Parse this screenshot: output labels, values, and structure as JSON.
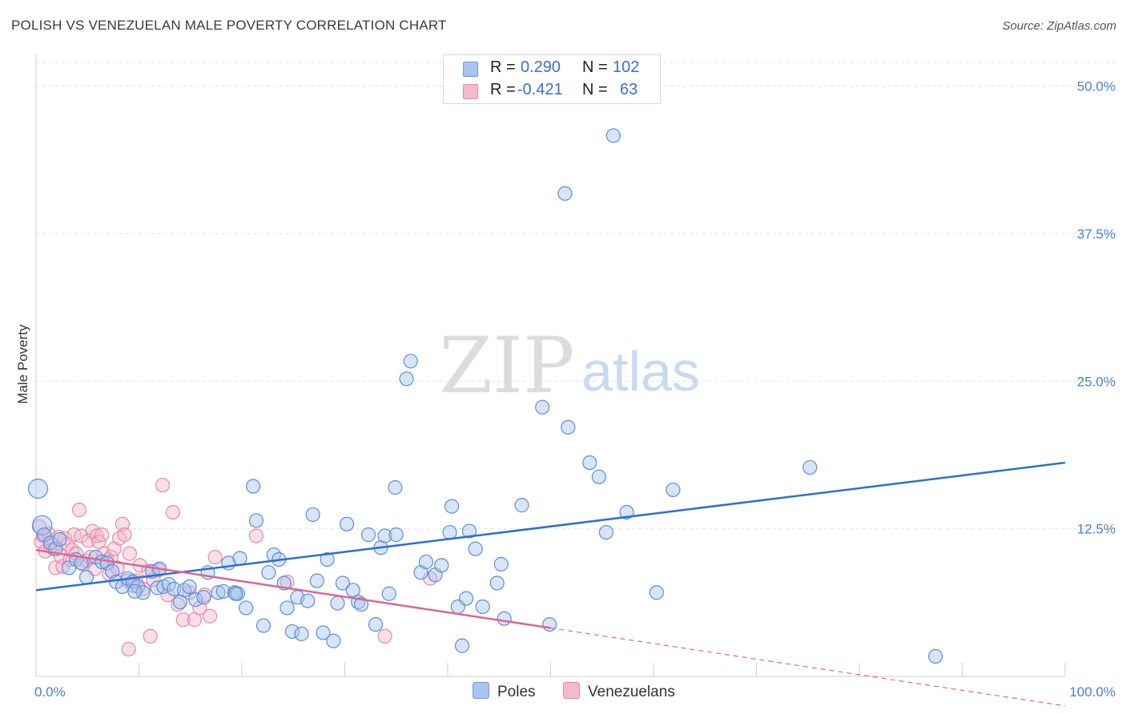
{
  "header": {
    "title": "POLISH VS VENEZUELAN MALE POVERTY CORRELATION CHART",
    "source": "Source: ZipAtlas.com"
  },
  "legend_top": {
    "rows": [
      {
        "r_label": "R =",
        "r_value": "0.290",
        "n_label": "N =",
        "n_value": "102",
        "color": "#a9c4f0"
      },
      {
        "r_label": "R =",
        "r_value": "-0.421",
        "n_label": "N =",
        "n_value": "63",
        "color": "#f5b8cc"
      }
    ]
  },
  "legend_bottom": {
    "items": [
      {
        "label": "Poles",
        "color": "#a9c4f0"
      },
      {
        "label": "Venezuelans",
        "color": "#f5b8cc"
      }
    ]
  },
  "watermark": {
    "zip": "ZIP",
    "atlas": "atlas"
  },
  "chart_data": {
    "type": "scatter",
    "title": "POLISH VS VENEZUELAN MALE POVERTY CORRELATION CHART",
    "xlabel": "",
    "ylabel": "Male Poverty",
    "xlim": [
      0,
      100
    ],
    "ylim": [
      0,
      52
    ],
    "x_tick_labels": [
      "0.0%",
      "100.0%"
    ],
    "y_ticks": [
      12.5,
      25.0,
      37.5,
      50.0
    ],
    "y_tick_labels": [
      "12.5%",
      "25.0%",
      "37.5%",
      "50.0%"
    ],
    "grid": true,
    "legend_placement": "top-center",
    "colors": {
      "poles_fill": "#a9c4f0",
      "poles_edge": "#5b8fd8",
      "poles_line": "#2e6fd0",
      "venezuelans_fill": "#f5b8cc",
      "venezuelans_edge": "#e48aa8",
      "venezuelans_line": "#e0658f"
    },
    "series": [
      {
        "name": "Poles",
        "r": 0.29,
        "n": 102,
        "trend": {
          "x": [
            0,
            100
          ],
          "y": [
            7.3,
            18.1
          ]
        },
        "points": [
          [
            0.2,
            15.9
          ],
          [
            0.6,
            12.8
          ],
          [
            0.8,
            12.0
          ],
          [
            1.4,
            11.3
          ],
          [
            1.9,
            10.8
          ],
          [
            2.3,
            11.6
          ],
          [
            3.2,
            9.2
          ],
          [
            3.9,
            9.9
          ],
          [
            4.4,
            9.6
          ],
          [
            4.9,
            8.4
          ],
          [
            5.8,
            10.1
          ],
          [
            6.4,
            9.7
          ],
          [
            6.9,
            9.6
          ],
          [
            7.4,
            8.9
          ],
          [
            7.8,
            8.0
          ],
          [
            8.4,
            7.6
          ],
          [
            8.9,
            8.3
          ],
          [
            9.4,
            8.0
          ],
          [
            9.9,
            7.6
          ],
          [
            10.4,
            7.1
          ],
          [
            11.3,
            8.9
          ],
          [
            11.8,
            7.5
          ],
          [
            12.4,
            7.6
          ],
          [
            12.9,
            7.8
          ],
          [
            13.4,
            7.4
          ],
          [
            14.4,
            7.3
          ],
          [
            14.9,
            7.6
          ],
          [
            15.5,
            6.5
          ],
          [
            16.3,
            6.7
          ],
          [
            16.7,
            8.8
          ],
          [
            17.7,
            7.1
          ],
          [
            18.2,
            7.2
          ],
          [
            18.7,
            9.6
          ],
          [
            19.3,
            7.1
          ],
          [
            19.6,
            7.0
          ],
          [
            19.8,
            10.0
          ],
          [
            20.4,
            5.8
          ],
          [
            21.1,
            16.1
          ],
          [
            21.4,
            13.2
          ],
          [
            22.1,
            4.3
          ],
          [
            22.6,
            8.8
          ],
          [
            23.1,
            10.3
          ],
          [
            23.6,
            9.9
          ],
          [
            24.1,
            7.9
          ],
          [
            24.4,
            5.8
          ],
          [
            24.9,
            3.8
          ],
          [
            25.4,
            6.7
          ],
          [
            25.8,
            3.6
          ],
          [
            26.4,
            6.4
          ],
          [
            26.9,
            13.7
          ],
          [
            27.3,
            8.1
          ],
          [
            27.9,
            3.7
          ],
          [
            28.3,
            9.9
          ],
          [
            28.9,
            3.0
          ],
          [
            29.3,
            6.2
          ],
          [
            29.8,
            7.9
          ],
          [
            30.2,
            12.9
          ],
          [
            30.8,
            7.3
          ],
          [
            31.3,
            6.3
          ],
          [
            31.6,
            6.1
          ],
          [
            32.3,
            12.0
          ],
          [
            33.0,
            4.4
          ],
          [
            33.5,
            10.9
          ],
          [
            33.9,
            11.9
          ],
          [
            34.3,
            7.0
          ],
          [
            35.0,
            12.0
          ],
          [
            34.9,
            16.0
          ],
          [
            36.0,
            25.2
          ],
          [
            36.4,
            26.7
          ],
          [
            37.4,
            8.8
          ],
          [
            37.9,
            9.7
          ],
          [
            38.8,
            8.6
          ],
          [
            39.4,
            9.4
          ],
          [
            40.2,
            12.2
          ],
          [
            40.4,
            14.4
          ],
          [
            41.0,
            5.9
          ],
          [
            41.4,
            2.6
          ],
          [
            41.8,
            6.6
          ],
          [
            42.1,
            12.3
          ],
          [
            42.7,
            10.8
          ],
          [
            43.4,
            5.9
          ],
          [
            44.8,
            7.9
          ],
          [
            45.5,
            4.9
          ],
          [
            45.2,
            9.5
          ],
          [
            47.2,
            14.5
          ],
          [
            49.2,
            22.8
          ],
          [
            49.9,
            4.4
          ],
          [
            51.4,
            40.9
          ],
          [
            51.7,
            21.1
          ],
          [
            53.8,
            18.1
          ],
          [
            54.7,
            16.9
          ],
          [
            55.4,
            12.2
          ],
          [
            56.1,
            45.8
          ],
          [
            57.4,
            13.9
          ],
          [
            60.3,
            7.1
          ],
          [
            61.9,
            15.8
          ],
          [
            75.2,
            17.7
          ],
          [
            87.4,
            1.7
          ],
          [
            19.4,
            7.0
          ],
          [
            14.0,
            6.3
          ],
          [
            9.6,
            7.2
          ],
          [
            12.0,
            9.1
          ]
        ]
      },
      {
        "name": "Venezuelans",
        "r": -0.421,
        "n": 63,
        "trend": {
          "x": [
            0,
            50
          ],
          "y": [
            10.7,
            4.1
          ]
        },
        "trend_dashed": {
          "x": [
            50,
            100
          ],
          "y": [
            4.1,
            -2.5
          ]
        },
        "points": [
          [
            0.3,
            12.7
          ],
          [
            0.5,
            11.4
          ],
          [
            0.7,
            11.9
          ],
          [
            0.9,
            10.6
          ],
          [
            1.2,
            12.1
          ],
          [
            1.4,
            11.0
          ],
          [
            1.7,
            10.8
          ],
          [
            1.9,
            9.2
          ],
          [
            2.2,
            11.8
          ],
          [
            2.4,
            10.2
          ],
          [
            2.6,
            9.3
          ],
          [
            2.8,
            11.7
          ],
          [
            3.1,
            11.2
          ],
          [
            3.3,
            9.9
          ],
          [
            3.5,
            10.7
          ],
          [
            3.7,
            12.0
          ],
          [
            3.9,
            10.4
          ],
          [
            4.2,
            14.1
          ],
          [
            4.4,
            11.9
          ],
          [
            4.6,
            9.5
          ],
          [
            4.9,
            9.8
          ],
          [
            5.1,
            11.5
          ],
          [
            5.3,
            10.1
          ],
          [
            5.5,
            12.3
          ],
          [
            5.7,
            9.1
          ],
          [
            5.9,
            11.9
          ],
          [
            6.1,
            11.4
          ],
          [
            6.4,
            12.0
          ],
          [
            6.6,
            10.4
          ],
          [
            6.9,
            9.8
          ],
          [
            7.1,
            8.7
          ],
          [
            7.3,
            10.1
          ],
          [
            7.6,
            10.8
          ],
          [
            7.9,
            9.2
          ],
          [
            8.1,
            11.7
          ],
          [
            8.4,
            12.9
          ],
          [
            8.6,
            12.0
          ],
          [
            8.9,
            8.1
          ],
          [
            9.1,
            10.4
          ],
          [
            9.4,
            7.7
          ],
          [
            9.7,
            8.1
          ],
          [
            10.1,
            9.4
          ],
          [
            10.4,
            7.4
          ],
          [
            10.9,
            8.9
          ],
          [
            11.4,
            8.2
          ],
          [
            11.9,
            9.0
          ],
          [
            12.3,
            16.2
          ],
          [
            12.8,
            6.9
          ],
          [
            13.3,
            13.9
          ],
          [
            13.8,
            6.1
          ],
          [
            14.3,
            4.8
          ],
          [
            14.9,
            7.1
          ],
          [
            15.4,
            4.8
          ],
          [
            15.9,
            5.8
          ],
          [
            16.4,
            6.9
          ],
          [
            16.9,
            5.1
          ],
          [
            17.4,
            10.1
          ],
          [
            21.4,
            11.9
          ],
          [
            24.4,
            8.0
          ],
          [
            33.9,
            3.4
          ],
          [
            38.3,
            8.3
          ],
          [
            11.1,
            3.4
          ],
          [
            9.0,
            2.3
          ]
        ]
      }
    ]
  }
}
